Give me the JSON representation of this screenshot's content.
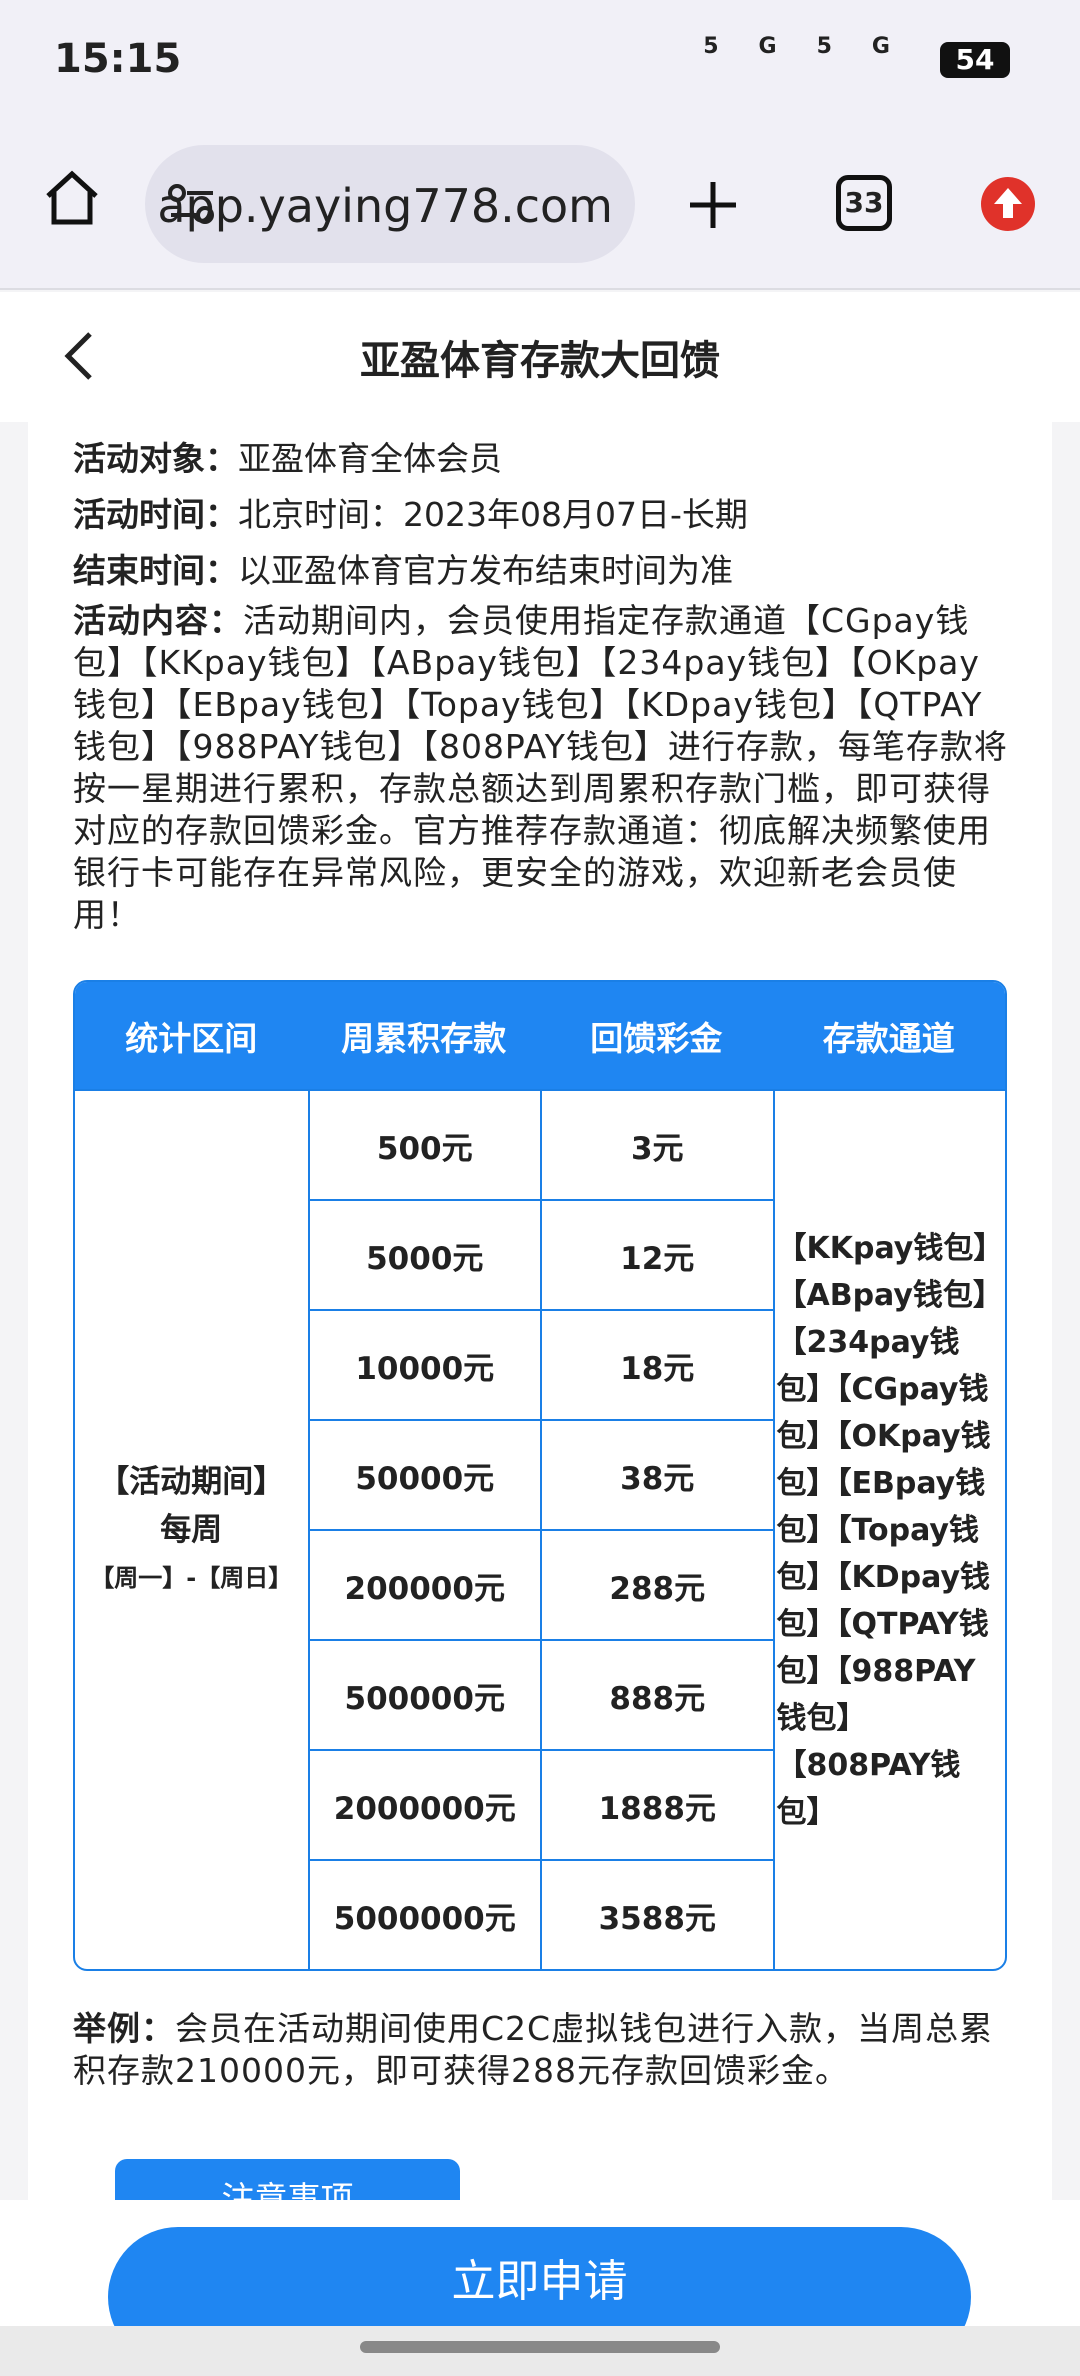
{
  "status_bar": {
    "time": "15:15",
    "network": [
      "5G",
      "5G"
    ],
    "battery": "54"
  },
  "browser": {
    "url": "app.yaying778.com",
    "tabs": "33"
  },
  "header": {
    "title": "亚盈体育存款大回馈"
  },
  "info": [
    {
      "label": "活动对象：",
      "value": "亚盈体育全体会员"
    },
    {
      "label": "活动时间：",
      "value": "北京时间：2023年08月07日-长期"
    },
    {
      "label": "结束时间：",
      "value": "以亚盈体育官方发布结束时间为准"
    }
  ],
  "content": {
    "label": "活动内容：",
    "text": "活动期间内，会员使用指定存款通道【CGpay钱包】【KKpay钱包】【ABpay钱包】【234pay钱包】【OKpay钱包】【EBpay钱包】【Topay钱包】【KDpay钱包】【QTPAY钱包】【988PAY钱包】【808PAY钱包】进行存款，每笔存款将按一星期进行累积，存款总额达到周累积存款门槛，即可获得对应的存款回馈彩金。官方推荐存款通道：彻底解决频繁使用银行卡可能存在异常风险，更安全的游戏，欢迎新老会员使用！"
  },
  "table": {
    "headers": [
      "统计区间",
      "周累积存款",
      "回馈彩金",
      "存款通道"
    ],
    "period": [
      "【活动期间】",
      "每周",
      "【周一】-【周日】"
    ],
    "rows": [
      [
        "500元",
        "3元"
      ],
      [
        "5000元",
        "12元"
      ],
      [
        "10000元",
        "18元"
      ],
      [
        "50000元",
        "38元"
      ],
      [
        "200000元",
        "288元"
      ],
      [
        "500000元",
        "888元"
      ],
      [
        "2000000元",
        "1888元"
      ],
      [
        "5000000元",
        "3588元"
      ]
    ],
    "channels": [
      "【KKpay钱包】",
      "【ABpay钱包】",
      "【234pay钱包】",
      "【CGpay钱包】",
      "【OKpay钱包】",
      "【EBpay钱包】",
      "【Topay钱包】",
      "【KDpay钱包】",
      "【QTPAY钱包】",
      "【988PAY钱包】",
      "【808PAY钱包】"
    ]
  },
  "example": {
    "label": "举例：",
    "text": "会员在活动期间使用C2C虚拟钱包进行入款，当周总累积存款210000元，即可获得288元存款回馈彩金。"
  },
  "notice_button": "注意事项",
  "apply_button": "立即申请"
}
